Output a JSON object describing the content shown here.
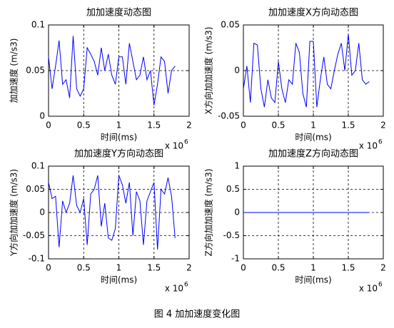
{
  "caption": "图 4  加加速度变化图",
  "chart_data": [
    {
      "type": "line",
      "title": "加加速度动态图",
      "xlabel": "时间(ms)",
      "ylabel": "加加速度 (m/s3)",
      "x_scale": {
        "text": "x 10",
        "power": "6"
      },
      "x": [
        0,
        0.05,
        0.1,
        0.15,
        0.2,
        0.25,
        0.3,
        0.35,
        0.4,
        0.45,
        0.5,
        0.55,
        0.6,
        0.65,
        0.7,
        0.75,
        0.8,
        0.85,
        0.9,
        0.95,
        1,
        1.05,
        1.1,
        1.15,
        1.2,
        1.25,
        1.3,
        1.35,
        1.4,
        1.45,
        1.5,
        1.55,
        1.6,
        1.65,
        1.7,
        1.75,
        1.8
      ],
      "series": [
        {
          "color": "#0000ff",
          "values": [
            0.065,
            0.03,
            0.055,
            0.083,
            0.035,
            0.04,
            0.02,
            0.088,
            0.03,
            0.022,
            0.03,
            0.075,
            0.068,
            0.06,
            0.045,
            0.075,
            0.05,
            0.068,
            0.045,
            0.035,
            0.065,
            0.065,
            0.035,
            0.08,
            0.06,
            0.04,
            0.045,
            0.065,
            0.04,
            0.05,
            0.012,
            0.035,
            0.065,
            0.06,
            0.025,
            0.05,
            0.055
          ]
        }
      ],
      "xlim": [
        0,
        2
      ],
      "xticks": [
        0,
        0.5,
        1,
        1.5,
        2
      ],
      "ylim": [
        0,
        0.1
      ],
      "yticks": [
        0,
        0.05,
        0.1
      ],
      "grid": true
    },
    {
      "type": "line",
      "title": "加加速度X方向动态图",
      "xlabel": "时间(ms)",
      "ylabel": "X方向加加速度 (m/s3)",
      "x_scale": {
        "text": "x 10",
        "power": "6"
      },
      "x": [
        0,
        0.05,
        0.1,
        0.15,
        0.2,
        0.25,
        0.3,
        0.35,
        0.4,
        0.45,
        0.5,
        0.55,
        0.6,
        0.65,
        0.7,
        0.75,
        0.8,
        0.85,
        0.9,
        0.95,
        1,
        1.05,
        1.1,
        1.15,
        1.2,
        1.25,
        1.3,
        1.35,
        1.4,
        1.45,
        1.5,
        1.55,
        1.6,
        1.65,
        1.7,
        1.75,
        1.8
      ],
      "series": [
        {
          "color": "#0000ff",
          "values": [
            -0.02,
            0.005,
            -0.035,
            0.03,
            0.028,
            -0.02,
            -0.04,
            -0.01,
            -0.03,
            -0.035,
            0.01,
            -0.02,
            -0.035,
            -0.01,
            -0.015,
            0.03,
            0.02,
            -0.025,
            -0.04,
            0.032,
            0.032,
            -0.04,
            -0.01,
            0.015,
            -0.015,
            -0.02,
            0,
            0.018,
            0.03,
            0,
            0.04,
            -0.005,
            0,
            0.03,
            -0.01,
            -0.015,
            -0.012
          ]
        }
      ],
      "xlim": [
        0,
        2
      ],
      "xticks": [
        0,
        0.5,
        1,
        1.5,
        2
      ],
      "ylim": [
        -0.05,
        0.05
      ],
      "yticks": [
        -0.05,
        0,
        0.05
      ],
      "grid": true
    },
    {
      "type": "line",
      "title": "加加速度Y方向动态图",
      "xlabel": "时间(ms)",
      "ylabel": "Y方向加加速度 (m/s3)",
      "x_scale": {
        "text": "x 10",
        "power": "6"
      },
      "x": [
        0,
        0.05,
        0.1,
        0.15,
        0.2,
        0.25,
        0.3,
        0.35,
        0.4,
        0.45,
        0.5,
        0.55,
        0.6,
        0.65,
        0.7,
        0.75,
        0.8,
        0.85,
        0.9,
        0.95,
        1,
        1.05,
        1.1,
        1.15,
        1.2,
        1.25,
        1.3,
        1.35,
        1.4,
        1.45,
        1.5,
        1.55,
        1.6,
        1.65,
        1.7,
        1.75,
        1.8
      ],
      "series": [
        {
          "color": "#0000ff",
          "values": [
            0.065,
            0.03,
            0.035,
            -0.075,
            0.025,
            0,
            0.02,
            0.08,
            0.015,
            0,
            0.03,
            -0.07,
            0.04,
            0.05,
            0.08,
            -0.03,
            0.02,
            -0.055,
            -0.06,
            -0.035,
            0.08,
            0.06,
            0.02,
            0.065,
            -0.05,
            0.045,
            0.025,
            -0.07,
            0.025,
            0.045,
            0.065,
            -0.08,
            0.05,
            0.04,
            0.075,
            0.035,
            -0.055
          ]
        }
      ],
      "xlim": [
        0,
        2
      ],
      "xticks": [
        0,
        0.5,
        1,
        1.5,
        2
      ],
      "ylim": [
        -0.1,
        0.1
      ],
      "yticks": [
        -0.1,
        -0.05,
        0,
        0.05,
        0.1
      ],
      "grid": true
    },
    {
      "type": "line",
      "title": "加加速度Z方向动态图",
      "xlabel": "时间(ms)",
      "ylabel": "Z方向加加速度 (m/s3)",
      "x_scale": {
        "text": "x 10",
        "power": "6"
      },
      "x": [
        0,
        0.05,
        0.1,
        0.15,
        0.2,
        0.25,
        0.3,
        0.35,
        0.4,
        0.45,
        0.5,
        0.55,
        0.6,
        0.65,
        0.7,
        0.75,
        0.8,
        0.85,
        0.9,
        0.95,
        1,
        1.05,
        1.1,
        1.15,
        1.2,
        1.25,
        1.3,
        1.35,
        1.4,
        1.45,
        1.5,
        1.55,
        1.6,
        1.65,
        1.7,
        1.75,
        1.8
      ],
      "series": [
        {
          "color": "#0000ff",
          "values": [
            0,
            0,
            0,
            0,
            0,
            0,
            0,
            0,
            0,
            0,
            0,
            0,
            0,
            0,
            0,
            0,
            0,
            0,
            0,
            0,
            0,
            0,
            0,
            0,
            0,
            0,
            0,
            0,
            0,
            0,
            0,
            0,
            0,
            0,
            0,
            0,
            0
          ]
        }
      ],
      "xlim": [
        0,
        2
      ],
      "xticks": [
        0,
        0.5,
        1,
        1.5,
        2
      ],
      "ylim": [
        -1,
        1
      ],
      "yticks": [
        -1,
        -0.5,
        0,
        0.5,
        1
      ],
      "grid": true
    }
  ]
}
